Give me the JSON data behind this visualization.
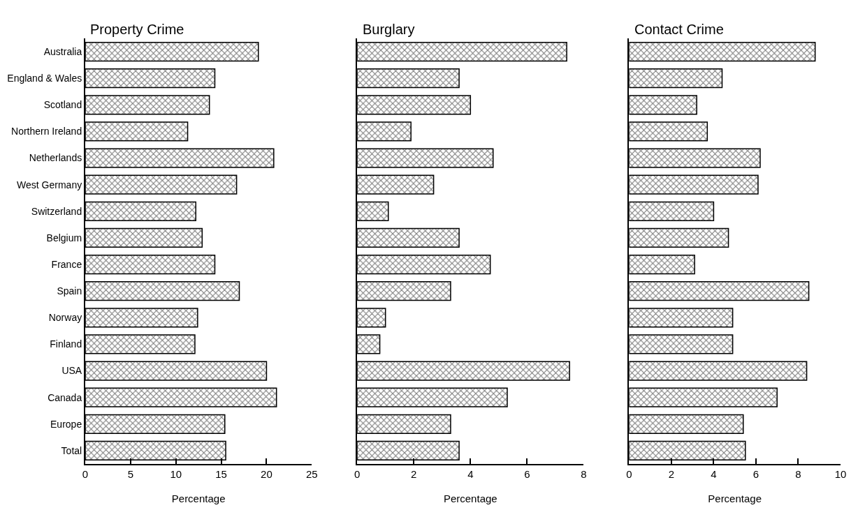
{
  "chart_data": [
    {
      "type": "bar",
      "orientation": "horizontal",
      "title": "Property Crime",
      "xlabel": "Percentage",
      "categories": [
        "Australia",
        "England & Wales",
        "Scotland",
        "Northern Ireland",
        "Netherlands",
        "West Germany",
        "Switzerland",
        "Belgium",
        "France",
        "Spain",
        "Norway",
        "Finland",
        "USA",
        "Canada",
        "Europe",
        "Total"
      ],
      "values": [
        19.1,
        14.3,
        13.7,
        11.3,
        20.8,
        16.7,
        12.2,
        12.9,
        14.3,
        17.0,
        12.4,
        12.1,
        20.0,
        21.1,
        15.4,
        15.5
      ],
      "color": "#000000",
      "xlim": [
        0,
        25
      ],
      "xticks": [
        0,
        5,
        10,
        15,
        20,
        25
      ]
    },
    {
      "type": "bar",
      "orientation": "horizontal",
      "title": "Burglary",
      "xlabel": "Percentage",
      "categories": [
        null,
        null,
        null,
        null,
        null,
        null,
        null,
        null,
        null,
        null,
        null,
        null,
        null,
        null,
        null,
        null
      ],
      "values": [
        7.4,
        3.6,
        4.0,
        1.9,
        4.8,
        2.7,
        1.1,
        3.6,
        4.7,
        3.3,
        1.0,
        0.8,
        7.5,
        5.3,
        3.3,
        3.6
      ],
      "color": "#000000",
      "xlim": [
        0,
        8
      ],
      "xticks": [
        0,
        2,
        4,
        6,
        8
      ]
    },
    {
      "type": "bar",
      "orientation": "horizontal",
      "title": "Contact Crime",
      "xlabel": "Percentage",
      "categories": [
        null,
        null,
        null,
        null,
        null,
        null,
        null,
        null,
        null,
        null,
        null,
        null,
        null,
        null,
        null,
        null
      ],
      "values": [
        8.8,
        4.4,
        3.2,
        3.7,
        6.2,
        6.1,
        4.0,
        4.7,
        3.1,
        8.5,
        4.9,
        4.9,
        8.4,
        7.0,
        5.4,
        5.5
      ],
      "color": "#000000",
      "xlim": [
        0,
        10
      ],
      "xticks": [
        0,
        2,
        4,
        6,
        8,
        10
      ]
    }
  ]
}
